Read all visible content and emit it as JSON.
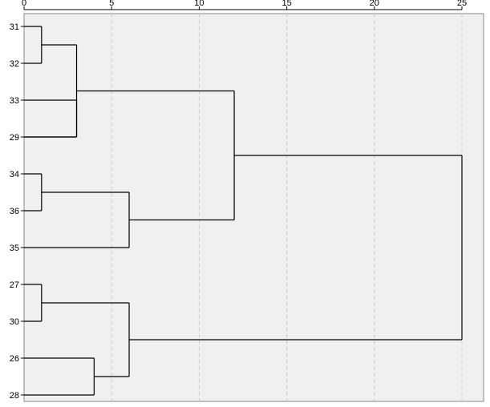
{
  "chart_data": {
    "type": "dendrogram",
    "orientation": "horizontal",
    "x_ticks": [
      0,
      5,
      10,
      15,
      20,
      25
    ],
    "xlim": [
      0,
      25
    ],
    "grid": "vertical-dashed",
    "leaves": [
      "31",
      "32",
      "33",
      "29",
      "34",
      "36",
      "35",
      "27",
      "30",
      "26",
      "28"
    ],
    "merges": [
      {
        "a": "31",
        "b": "32",
        "height": 1
      },
      {
        "a": "33",
        "b": "29",
        "height": 3
      },
      {
        "a": "34",
        "b": "36",
        "height": 1
      },
      {
        "a": "35",
        "b": "34+36",
        "height": 6
      },
      {
        "a": "27",
        "b": "30",
        "height": 1
      },
      {
        "a": "26",
        "b": "28",
        "height": 4
      },
      {
        "a": "27+30",
        "b": "26+28",
        "height": 6
      },
      {
        "a": "29-33",
        "b": "34-36",
        "height": 12
      },
      {
        "a": "29-36",
        "b": "26-30",
        "height": 25
      }
    ],
    "colors": {
      "plot_background": "#f0f0f0",
      "line": "#000000",
      "grid": "#c8c8c8"
    }
  }
}
